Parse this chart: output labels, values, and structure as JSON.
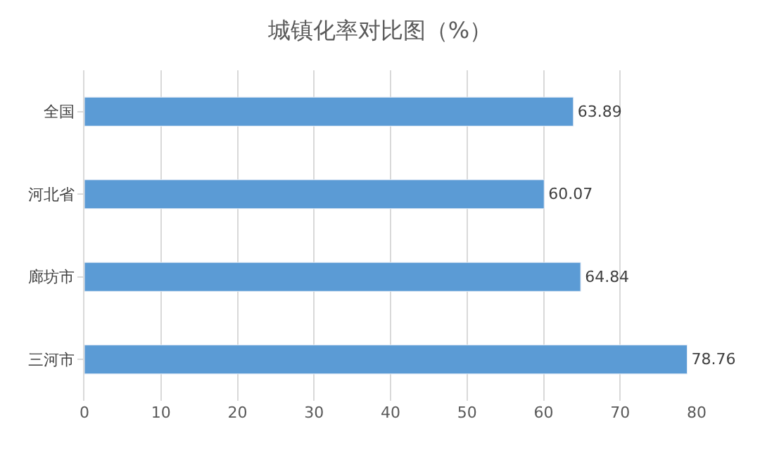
{
  "chart_data": {
    "type": "bar",
    "orientation": "horizontal",
    "title": "城镇化率对比图（%）",
    "categories": [
      "全国",
      "河北省",
      "廊坊市",
      "三河市"
    ],
    "values": [
      63.89,
      60.07,
      64.84,
      78.76
    ],
    "color": "#5b9bd5",
    "xlim": [
      0,
      80
    ],
    "xticks": [
      0,
      10,
      20,
      30,
      40,
      50,
      60,
      70,
      80
    ],
    "grid": "x",
    "data_labels": true
  }
}
